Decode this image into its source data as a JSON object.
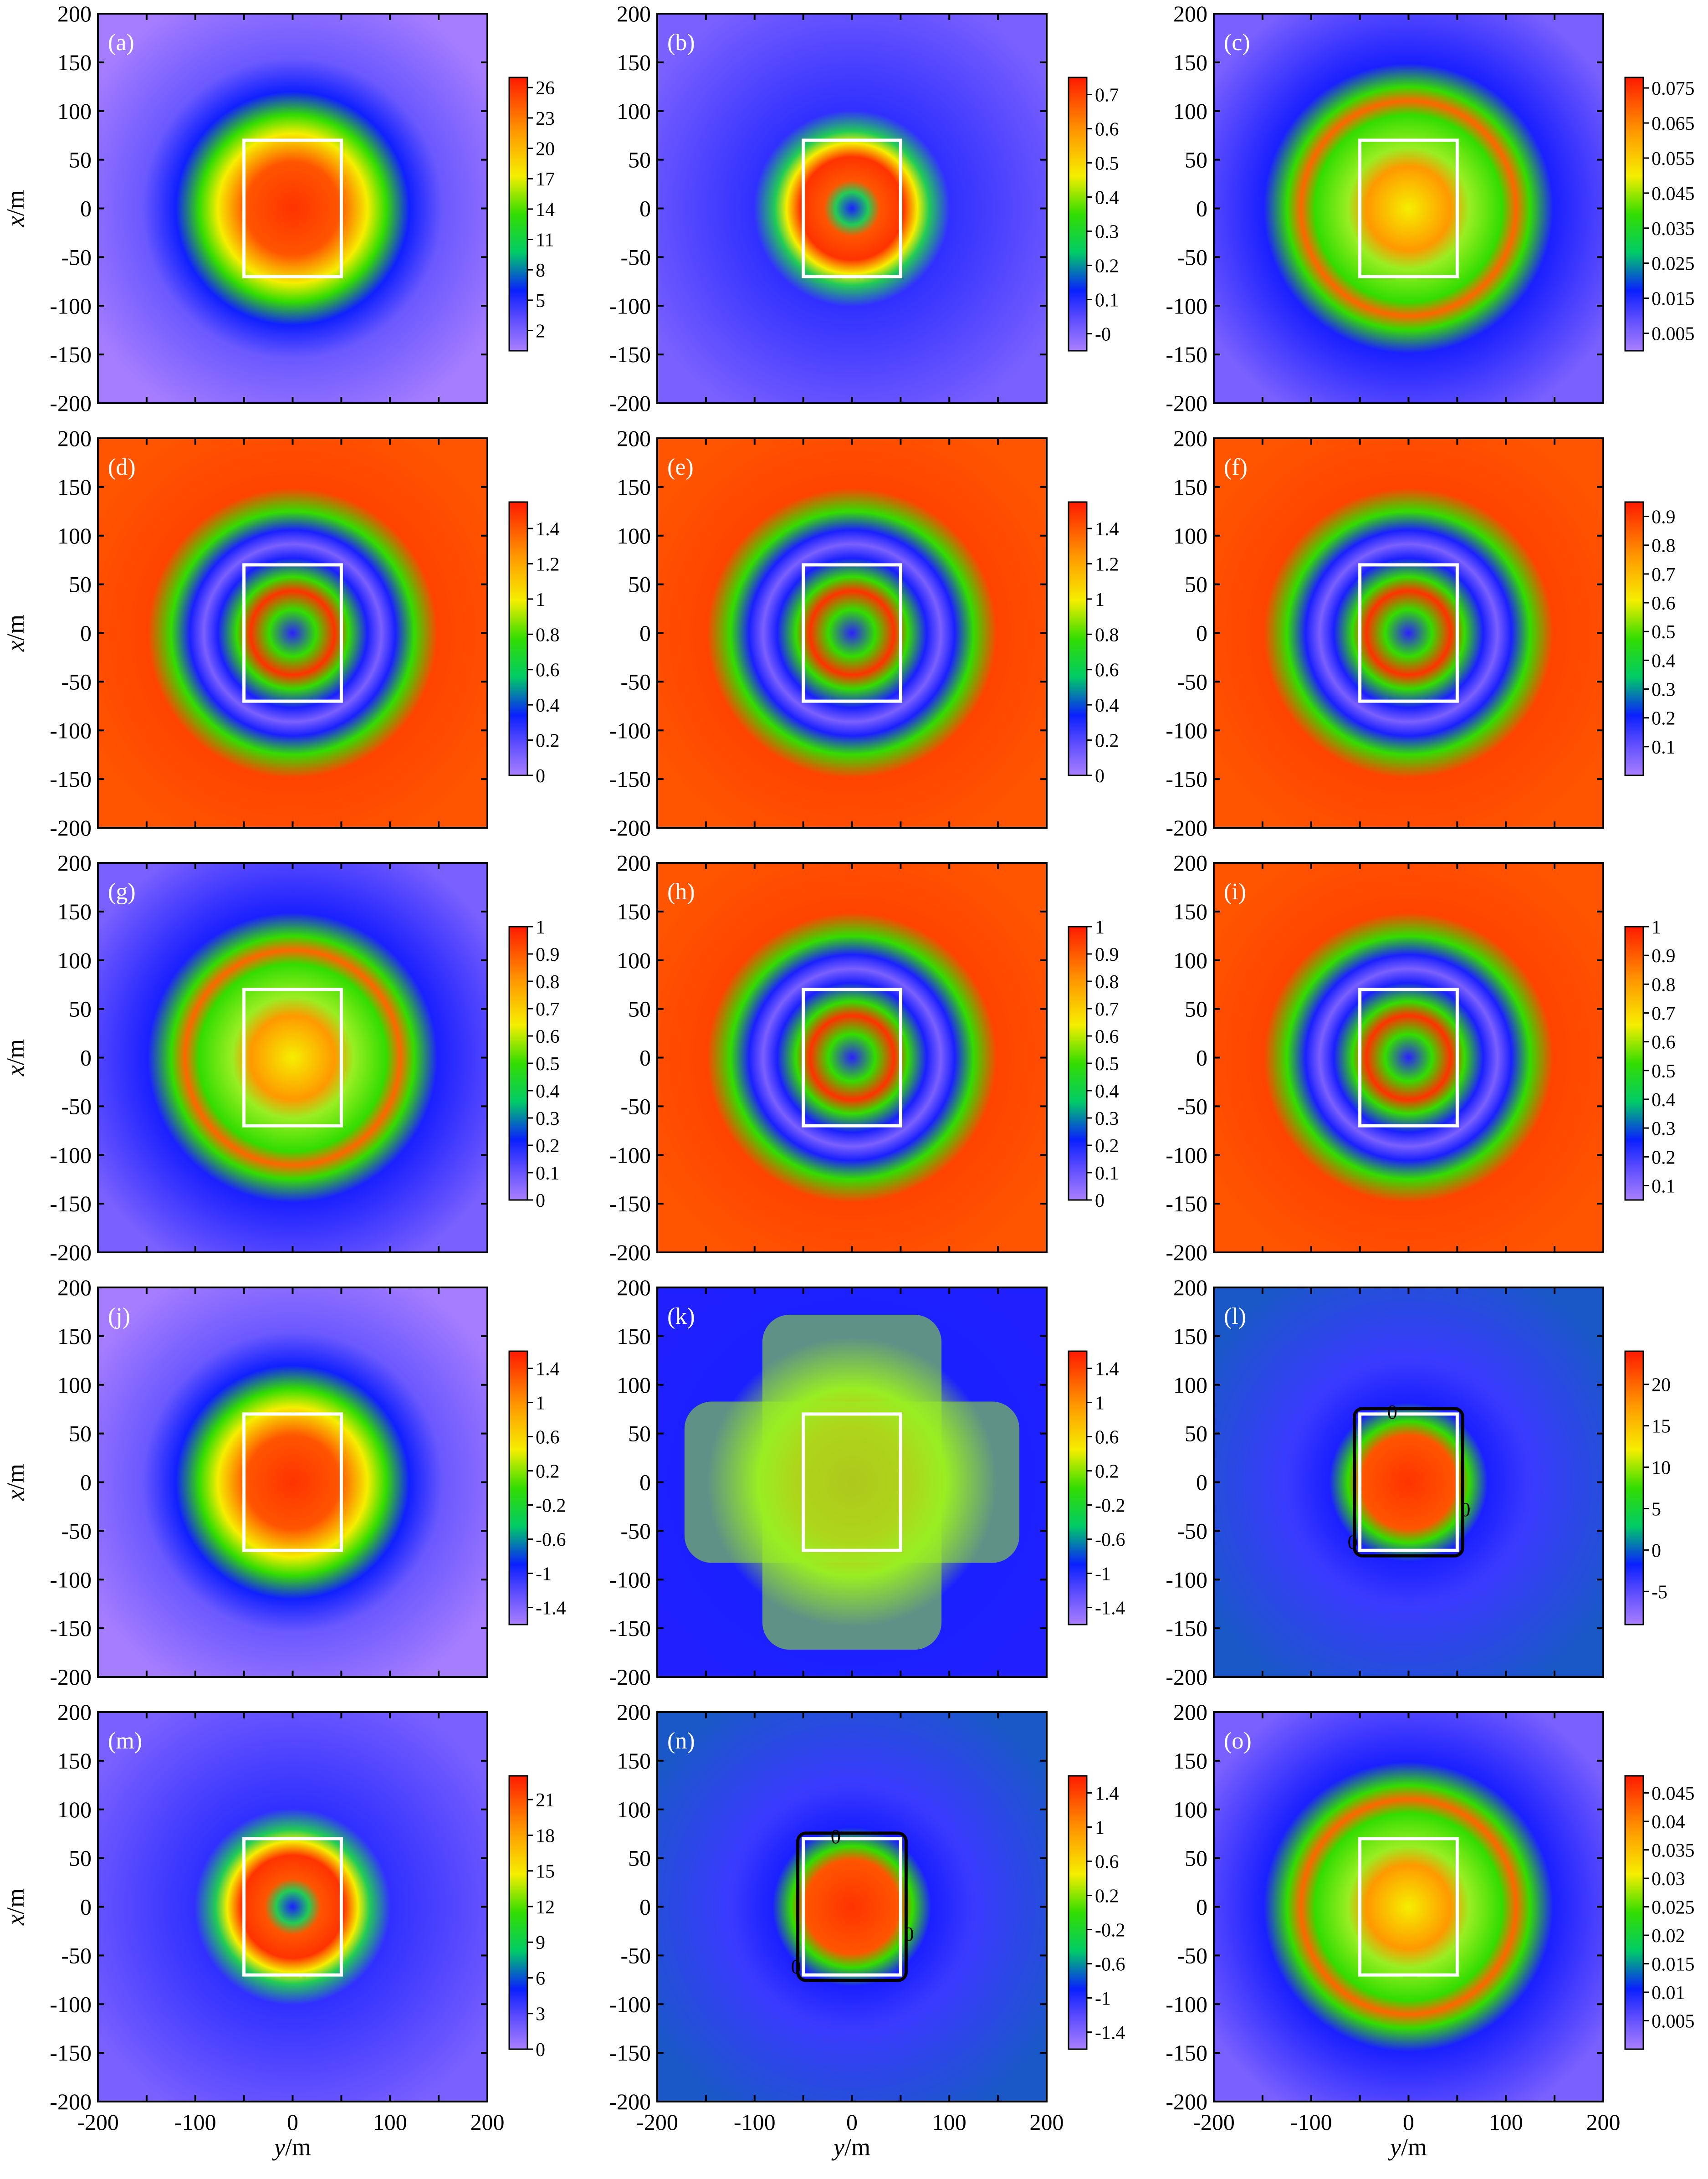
{
  "figure": {
    "axis_ticks": [
      "200",
      "150",
      "100",
      "50",
      "0",
      "-50",
      "-100",
      "-150",
      "-200"
    ],
    "x_axis_ticks": [
      "-200",
      "-100",
      "0",
      "100",
      "200"
    ],
    "ylabel_var": "x",
    "ylabel_unit": "/m",
    "xlabel_var": "y",
    "xlabel_unit": "/m"
  },
  "chart_data": [
    {
      "type": "heatmap",
      "panel": "(a)",
      "field": "central",
      "xlim": [
        -200,
        200
      ],
      "ylim": [
        -200,
        200
      ],
      "inner_rectangle": {
        "y": [
          -50,
          50
        ],
        "x": [
          -70,
          70
        ]
      },
      "colorbar": {
        "ticks": [
          "26",
          "23",
          "20",
          "17",
          "14",
          "11",
          "8",
          "5",
          "2"
        ],
        "min": 0,
        "max": 27
      }
    },
    {
      "type": "heatmap",
      "panel": "(b)",
      "field": "hollow",
      "xlim": [
        -200,
        200
      ],
      "ylim": [
        -200,
        200
      ],
      "inner_rectangle": {
        "y": [
          -50,
          50
        ],
        "x": [
          -70,
          70
        ]
      },
      "colorbar": {
        "ticks": [
          "0.7",
          "0.6",
          "0.5",
          "0.4",
          "0.3",
          "0.2",
          "0.1",
          "-0"
        ],
        "min": -0.05,
        "max": 0.75
      }
    },
    {
      "type": "heatmap",
      "panel": "(c)",
      "field": "ringcore",
      "xlim": [
        -200,
        200
      ],
      "ylim": [
        -200,
        200
      ],
      "inner_rectangle": {
        "y": [
          -50,
          50
        ],
        "x": [
          -70,
          70
        ]
      },
      "colorbar": {
        "ticks": [
          "0.075",
          "0.065",
          "0.055",
          "0.045",
          "0.035",
          "0.025",
          "0.015",
          "0.005"
        ],
        "min": 0,
        "max": 0.078
      }
    },
    {
      "type": "heatmap",
      "panel": "(d)",
      "field": "rings",
      "xlim": [
        -200,
        200
      ],
      "ylim": [
        -200,
        200
      ],
      "inner_rectangle": {
        "y": [
          -50,
          50
        ],
        "x": [
          -70,
          70
        ]
      },
      "colorbar": {
        "ticks": [
          "1.4",
          "1.2",
          "1",
          "0.8",
          "0.6",
          "0.4",
          "0.2",
          "0"
        ],
        "min": 0,
        "max": 1.55
      }
    },
    {
      "type": "heatmap",
      "panel": "(e)",
      "field": "rings",
      "xlim": [
        -200,
        200
      ],
      "ylim": [
        -200,
        200
      ],
      "inner_rectangle": {
        "y": [
          -50,
          50
        ],
        "x": [
          -70,
          70
        ]
      },
      "colorbar": {
        "ticks": [
          "1.4",
          "1.2",
          "1",
          "0.8",
          "0.6",
          "0.4",
          "0.2",
          "0"
        ],
        "min": 0,
        "max": 1.55
      }
    },
    {
      "type": "heatmap",
      "panel": "(f)",
      "field": "rings",
      "xlim": [
        -200,
        200
      ],
      "ylim": [
        -200,
        200
      ],
      "inner_rectangle": {
        "y": [
          -50,
          50
        ],
        "x": [
          -70,
          70
        ]
      },
      "colorbar": {
        "ticks": [
          "0.9",
          "0.8",
          "0.7",
          "0.6",
          "0.5",
          "0.4",
          "0.3",
          "0.2",
          "0.1"
        ],
        "min": 0,
        "max": 0.95
      }
    },
    {
      "type": "heatmap",
      "panel": "(g)",
      "field": "ringcore",
      "xlim": [
        -200,
        200
      ],
      "ylim": [
        -200,
        200
      ],
      "inner_rectangle": {
        "y": [
          -50,
          50
        ],
        "x": [
          -70,
          70
        ]
      },
      "colorbar": {
        "ticks": [
          "1",
          "0.9",
          "0.8",
          "0.7",
          "0.6",
          "0.5",
          "0.4",
          "0.3",
          "0.2",
          "0.1",
          "0"
        ],
        "min": 0,
        "max": 1
      }
    },
    {
      "type": "heatmap",
      "panel": "(h)",
      "field": "rings",
      "xlim": [
        -200,
        200
      ],
      "ylim": [
        -200,
        200
      ],
      "inner_rectangle": {
        "y": [
          -50,
          50
        ],
        "x": [
          -70,
          70
        ]
      },
      "colorbar": {
        "ticks": [
          "1",
          "0.9",
          "0.8",
          "0.7",
          "0.6",
          "0.5",
          "0.4",
          "0.3",
          "0.2",
          "0.1",
          "0"
        ],
        "min": 0,
        "max": 1
      }
    },
    {
      "type": "heatmap",
      "panel": "(i)",
      "field": "rings",
      "xlim": [
        -200,
        200
      ],
      "ylim": [
        -200,
        200
      ],
      "inner_rectangle": {
        "y": [
          -50,
          50
        ],
        "x": [
          -70,
          70
        ]
      },
      "colorbar": {
        "ticks": [
          "1",
          "0.9",
          "0.8",
          "0.7",
          "0.6",
          "0.5",
          "0.4",
          "0.3",
          "0.2",
          "0.1"
        ],
        "min": 0.05,
        "max": 1
      }
    },
    {
      "type": "heatmap",
      "panel": "(j)",
      "field": "central",
      "xlim": [
        -200,
        200
      ],
      "ylim": [
        -200,
        200
      ],
      "inner_rectangle": {
        "y": [
          -50,
          50
        ],
        "x": [
          -70,
          70
        ]
      },
      "colorbar": {
        "ticks": [
          "1.4",
          "1",
          "0.6",
          "0.2",
          "-0.2",
          "-0.6",
          "-1",
          "-1.4"
        ],
        "min": -1.6,
        "max": 1.6
      }
    },
    {
      "type": "heatmap",
      "panel": "(k)",
      "field": "cross",
      "xlim": [
        -200,
        200
      ],
      "ylim": [
        -200,
        200
      ],
      "inner_rectangle": {
        "y": [
          -50,
          50
        ],
        "x": [
          -70,
          70
        ]
      },
      "colorbar": {
        "ticks": [
          "1.4",
          "1",
          "0.6",
          "0.2",
          "-0.2",
          "-0.6",
          "-1",
          "-1.4"
        ],
        "min": -1.6,
        "max": 1.6
      }
    },
    {
      "type": "heatmap",
      "panel": "(l)",
      "field": "signed",
      "xlim": [
        -200,
        200
      ],
      "ylim": [
        -200,
        200
      ],
      "inner_rectangle": {
        "y": [
          -50,
          50
        ],
        "x": [
          -70,
          70
        ]
      },
      "contour_labels": [
        "0",
        "0",
        "0"
      ],
      "colorbar": {
        "ticks": [
          "20",
          "15",
          "10",
          "5",
          "0",
          "-5"
        ],
        "min": -9,
        "max": 24
      }
    },
    {
      "type": "heatmap",
      "panel": "(m)",
      "field": "hollow",
      "xlim": [
        -200,
        200
      ],
      "ylim": [
        -200,
        200
      ],
      "inner_rectangle": {
        "y": [
          -50,
          50
        ],
        "x": [
          -70,
          70
        ]
      },
      "colorbar": {
        "ticks": [
          "21",
          "18",
          "15",
          "12",
          "9",
          "6",
          "3",
          "0"
        ],
        "min": 0,
        "max": 23
      }
    },
    {
      "type": "heatmap",
      "panel": "(n)",
      "field": "signed",
      "xlim": [
        -200,
        200
      ],
      "ylim": [
        -200,
        200
      ],
      "inner_rectangle": {
        "y": [
          -50,
          50
        ],
        "x": [
          -70,
          70
        ]
      },
      "contour_labels": [
        "0",
        "0",
        "0"
      ],
      "colorbar": {
        "ticks": [
          "1.4",
          "1",
          "0.6",
          "0.2",
          "-0.2",
          "-0.6",
          "-1",
          "-1.4"
        ],
        "min": -1.6,
        "max": 1.6
      }
    },
    {
      "type": "heatmap",
      "panel": "(o)",
      "field": "ringcore",
      "xlim": [
        -200,
        200
      ],
      "ylim": [
        -200,
        200
      ],
      "inner_rectangle": {
        "y": [
          -50,
          50
        ],
        "x": [
          -70,
          70
        ]
      },
      "colorbar": {
        "ticks": [
          "0.045",
          "0.04",
          "0.035",
          "0.03",
          "0.025",
          "0.02",
          "0.015",
          "0.01",
          "0.005"
        ],
        "min": 0,
        "max": 0.048
      }
    }
  ]
}
